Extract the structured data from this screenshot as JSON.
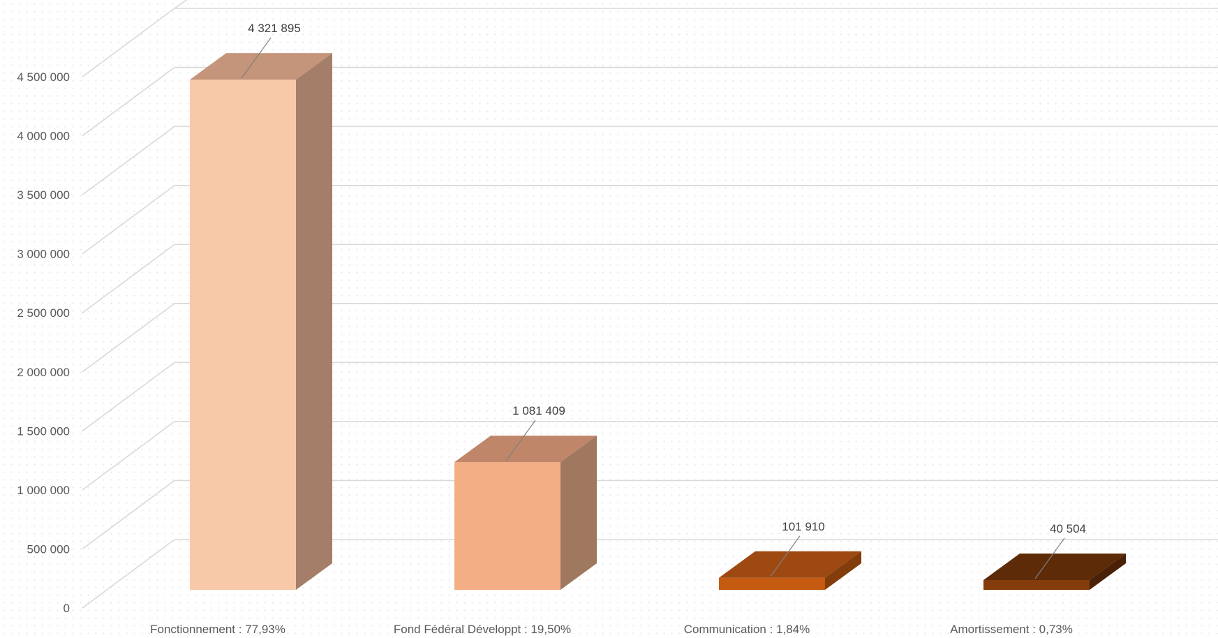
{
  "chart_data": {
    "type": "bar",
    "title": "",
    "xlabel": "",
    "ylabel": "",
    "categories": [
      "Fonctionnement : 77,93%",
      "Fond Fédéral Développt : 19,50%",
      "Communication : 1,84%",
      "Amortissement : 0,73%"
    ],
    "values": [
      4321895,
      1081409,
      101910,
      40504
    ],
    "data_labels": [
      "4 321 895",
      "1 081 409",
      "101 910",
      "40 504"
    ],
    "colors": [
      {
        "front": "#f7c9a8",
        "top": "#c4957a",
        "side": "#a47e68"
      },
      {
        "front": "#f4ae86",
        "top": "#c08669",
        "side": "#a0785f"
      },
      {
        "front": "#c55a11",
        "top": "#9e4911",
        "side": "#833c0c"
      },
      {
        "front": "#843c0c",
        "top": "#5e2b08",
        "side": "#4a2106"
      }
    ],
    "ylim": [
      0,
      4500000
    ],
    "yticks": [
      0,
      500000,
      1000000,
      1500000,
      2000000,
      2500000,
      3000000,
      3500000,
      4000000,
      4500000
    ],
    "ytick_labels": [
      "0",
      "500 000",
      "1 000 000",
      "1 500 000",
      "2 000 000",
      "2 500 000",
      "3 000 000",
      "3 500 000",
      "4 000 000",
      "4 500 000"
    ],
    "grid": true,
    "style": "3d-column",
    "legend": "none"
  }
}
